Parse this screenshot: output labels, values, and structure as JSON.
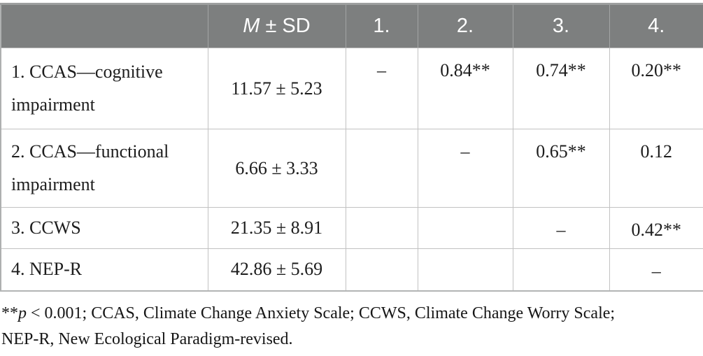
{
  "table": {
    "header": {
      "stat_col": {
        "m": "M",
        "pm": "±",
        "sd": "SD"
      },
      "num_cols": [
        "1.",
        "2.",
        "3.",
        "4."
      ]
    },
    "rows": [
      {
        "label": "1. CCAS—cognitive impairment",
        "m_sd": "11.57 ± 5.23",
        "r": [
          "–",
          "0.84**",
          "0.74**",
          "0.20**"
        ]
      },
      {
        "label": "2. CCAS—functional impairment",
        "m_sd": "6.66 ± 3.33",
        "r": [
          "",
          "–",
          "0.65**",
          "0.12"
        ]
      },
      {
        "label": "3. CCWS",
        "m_sd": "21.35 ± 8.91",
        "r": [
          "",
          "",
          "–",
          "0.42**"
        ]
      },
      {
        "label": "4. NEP-R",
        "m_sd": "42.86 ± 5.69",
        "r": [
          "",
          "",
          "",
          "–"
        ]
      }
    ]
  },
  "footnote": {
    "stars": "**",
    "p": "p",
    "line1_rest": " < 0.001; CCAS, Climate Change Anxiety Scale; CCWS, Climate Change Worry Scale;",
    "line2": "NEP-R, New Ecological Paradigm-revised."
  },
  "colors": {
    "header_bg": "#7d7f7f",
    "header_text": "#ffffff",
    "header_divider": "#a3a5a5",
    "grid_line": "#c2c2c2",
    "outer_border": "#aeb0b0",
    "body_text": "#1d1d1d"
  }
}
